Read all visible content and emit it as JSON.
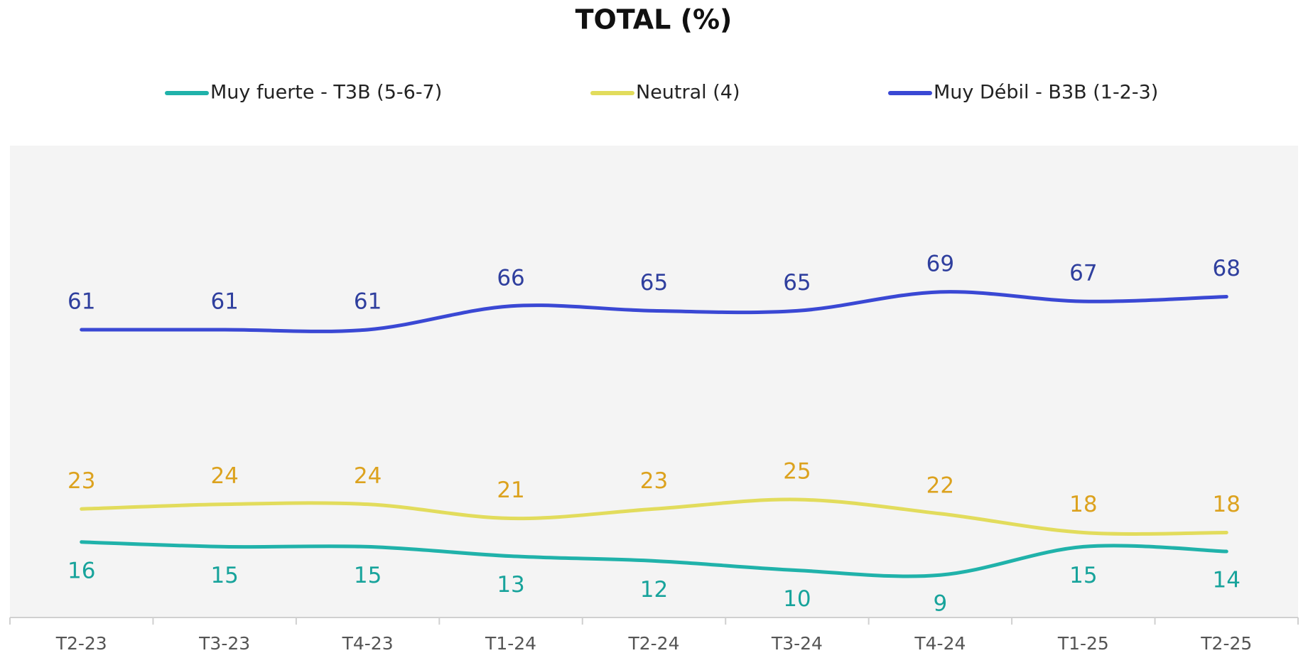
{
  "chart_data": {
    "type": "line",
    "title": "TOTAL (%)",
    "categories": [
      "T2-23",
      "T3-23",
      "T4-23",
      "T1-24",
      "T2-24",
      "T3-24",
      "T4-24",
      "T1-25",
      "T2-25"
    ],
    "series": [
      {
        "name": "Muy fuerte - T3B (5-6-7)",
        "color": "#20b2aa",
        "label_color": "#17a39b",
        "label_position": "below",
        "values": [
          16,
          15,
          15,
          13,
          12,
          10,
          9,
          15,
          14
        ]
      },
      {
        "name": "Neutral (4)",
        "color": "#e2dc5c",
        "label_color": "#dca21e",
        "label_position": "above",
        "values": [
          23,
          24,
          24,
          21,
          23,
          25,
          22,
          18,
          18
        ]
      },
      {
        "name": "Muy Débil - B3B (1-2-3)",
        "color": "#3a48d4",
        "label_color": "#2f3f9e",
        "label_position": "above",
        "values": [
          61,
          61,
          61,
          66,
          65,
          65,
          69,
          67,
          68
        ]
      }
    ],
    "ylim": [
      0,
      100
    ],
    "legend": "top"
  }
}
